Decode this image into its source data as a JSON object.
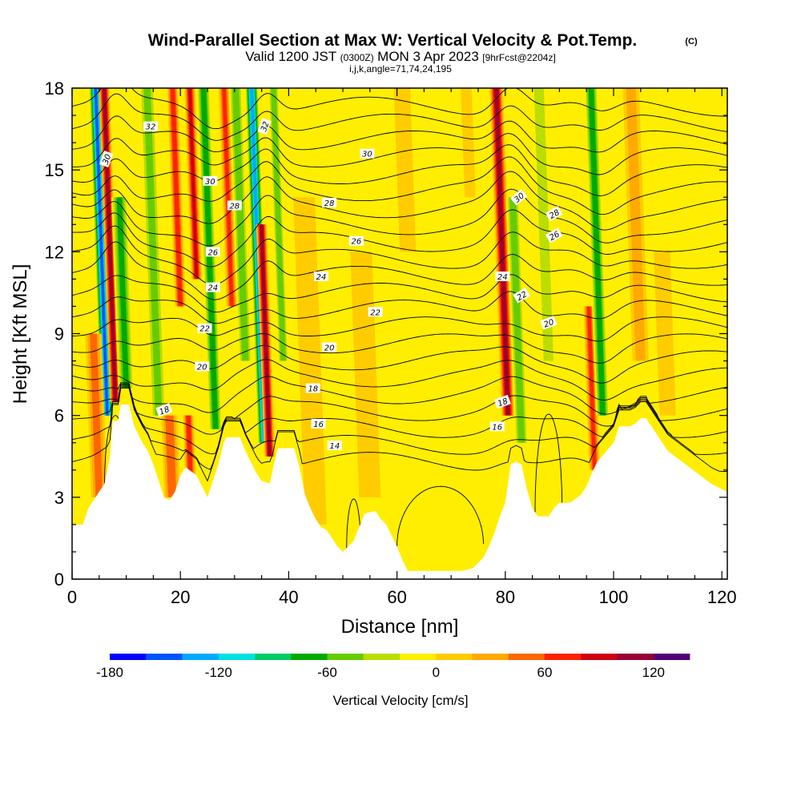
{
  "header": {
    "title": "Wind-Parallel Section at Max W: Vertical Velocity & Pot.Temp.",
    "copyright": "(C)",
    "valid_prefix": "Valid 1200 JST",
    "valid_utc": "(0300Z)",
    "valid_date": "MON 3 Apr 2023",
    "forecast": "[9hrFcst@2204z]",
    "params": "i,j,k,angle=71,74,24,195"
  },
  "chart_data": {
    "type": "heatmap",
    "title": "Wind-Parallel Section at Max W: Vertical Velocity & Pot.Temp.",
    "xlabel": "Distance [nm]",
    "ylabel": "Height [Kft MSL]",
    "xlim": [
      0,
      121
    ],
    "ylim": [
      0,
      18
    ],
    "x_ticks": [
      0,
      20,
      40,
      60,
      80,
      100,
      120
    ],
    "y_ticks": [
      0,
      3,
      6,
      9,
      12,
      15,
      18
    ],
    "colorbar": {
      "label": "Vertical Velocity [cm/s]",
      "range": [
        -180,
        140
      ],
      "step": 20,
      "tick_values": [
        -180,
        -120,
        -60,
        0,
        60,
        120
      ],
      "tick_labels": [
        "-180",
        "-120",
        "-60",
        "0",
        "60",
        "120"
      ],
      "colors": [
        "#0000ff",
        "#0055ff",
        "#00aaff",
        "#00e0e0",
        "#00cc66",
        "#00aa00",
        "#66cc00",
        "#bbdd00",
        "#ffee00",
        "#ffcc00",
        "#ffaa00",
        "#ff6600",
        "#ff2200",
        "#cc0011",
        "#990033",
        "#550077"
      ]
    },
    "terrain_kft": [
      [
        0,
        2.0
      ],
      [
        2,
        2.0
      ],
      [
        3,
        2.6
      ],
      [
        4,
        2.9
      ],
      [
        6,
        3.5
      ],
      [
        7,
        4.5
      ],
      [
        7.5,
        5.8
      ],
      [
        8.5,
        5.8
      ],
      [
        9,
        6.4
      ],
      [
        10.5,
        6.4
      ],
      [
        11.5,
        5.6
      ],
      [
        13,
        5.0
      ],
      [
        14,
        4.7
      ],
      [
        15,
        4.2
      ],
      [
        16,
        3.6
      ],
      [
        17,
        3.0
      ],
      [
        18,
        2.9
      ],
      [
        19,
        3.2
      ],
      [
        20,
        3.8
      ],
      [
        21,
        4.1
      ],
      [
        23,
        3.8
      ],
      [
        24,
        3.4
      ],
      [
        25,
        3.0
      ],
      [
        26,
        3.6
      ],
      [
        27,
        4.2
      ],
      [
        28,
        5.0
      ],
      [
        28.5,
        5.2
      ],
      [
        31,
        5.2
      ],
      [
        32,
        4.7
      ],
      [
        33,
        4.3
      ],
      [
        34,
        3.9
      ],
      [
        35,
        3.6
      ],
      [
        36.5,
        3.5
      ],
      [
        37.5,
        4.4
      ],
      [
        38,
        4.8
      ],
      [
        41,
        4.8
      ],
      [
        42,
        4.1
      ],
      [
        43,
        3.1
      ],
      [
        44,
        2.6
      ],
      [
        45,
        2.2
      ],
      [
        46,
        1.9
      ],
      [
        47,
        1.8
      ],
      [
        48,
        1.5
      ],
      [
        49,
        1.2
      ],
      [
        50,
        1.0
      ],
      [
        51,
        1.2
      ],
      [
        52,
        1.4
      ],
      [
        53,
        1.9
      ],
      [
        54,
        2.4
      ],
      [
        56,
        2.5
      ],
      [
        57,
        2.2
      ],
      [
        58,
        2.0
      ],
      [
        60,
        1.2
      ],
      [
        61,
        0.7
      ],
      [
        62,
        0.3
      ],
      [
        64,
        0.3
      ],
      [
        66,
        0.3
      ],
      [
        68,
        0.3
      ],
      [
        70,
        0.3
      ],
      [
        72,
        0.3
      ],
      [
        74,
        0.4
      ],
      [
        76,
        0.8
      ],
      [
        77,
        1.2
      ],
      [
        78,
        1.7
      ],
      [
        79,
        2.3
      ],
      [
        80,
        2.8
      ],
      [
        81,
        4.2
      ],
      [
        82,
        4.3
      ],
      [
        83,
        4.2
      ],
      [
        84,
        3.3
      ],
      [
        85,
        2.6
      ],
      [
        86,
        2.3
      ],
      [
        88,
        2.3
      ],
      [
        89,
        2.6
      ],
      [
        90,
        2.8
      ],
      [
        92,
        2.8
      ],
      [
        94,
        3.1
      ],
      [
        95,
        3.4
      ],
      [
        96,
        3.9
      ],
      [
        97,
        4.3
      ],
      [
        100,
        5.0
      ],
      [
        101,
        5.6
      ],
      [
        103,
        5.6
      ],
      [
        104,
        5.7
      ],
      [
        105,
        5.9
      ],
      [
        106,
        5.9
      ],
      [
        107,
        5.6
      ],
      [
        108,
        5.3
      ],
      [
        109,
        5.0
      ],
      [
        110,
        4.7
      ],
      [
        112,
        4.4
      ],
      [
        114,
        4.1
      ],
      [
        116,
        3.8
      ],
      [
        118,
        3.5
      ],
      [
        119,
        3.4
      ],
      [
        120,
        3.3
      ],
      [
        121,
        3.2
      ]
    ],
    "vertical_velocity_bands": [
      {
        "x": 6.5,
        "w": 2.5,
        "v": -160,
        "zmin": 6.0,
        "zmax": 18
      },
      {
        "x": 8.0,
        "w": 2.0,
        "v": 120,
        "zmin": 6.5,
        "zmax": 18
      },
      {
        "x": 5.0,
        "w": 3.0,
        "v": 60,
        "zmin": 3.0,
        "zmax": 9
      },
      {
        "x": 10.0,
        "w": 3.0,
        "v": -80,
        "zmin": 7.0,
        "zmax": 14
      },
      {
        "x": 16.0,
        "w": 3.0,
        "v": -60,
        "zmin": 6.0,
        "zmax": 18
      },
      {
        "x": 18.5,
        "w": 3.0,
        "v": 70,
        "zmin": 3.0,
        "zmax": 6
      },
      {
        "x": 20.0,
        "w": 2.0,
        "v": 90,
        "zmin": 10.0,
        "zmax": 18
      },
      {
        "x": 22.0,
        "w": 2.0,
        "v": 90,
        "zmin": 3.0,
        "zmax": 6
      },
      {
        "x": 23.0,
        "w": 2.0,
        "v": 100,
        "zmin": 11.0,
        "zmax": 18
      },
      {
        "x": 26.5,
        "w": 2.5,
        "v": -90,
        "zmin": 5.5,
        "zmax": 18
      },
      {
        "x": 29.5,
        "w": 2.0,
        "v": 80,
        "zmin": 10.0,
        "zmax": 18
      },
      {
        "x": 32.0,
        "w": 2.5,
        "v": -70,
        "zmin": 8.0,
        "zmax": 18
      },
      {
        "x": 35.5,
        "w": 2.5,
        "v": -150,
        "zmin": 5.0,
        "zmax": 18
      },
      {
        "x": 36.5,
        "w": 2.0,
        "v": 120,
        "zmin": 4.5,
        "zmax": 13
      },
      {
        "x": 39.0,
        "w": 2.0,
        "v": -70,
        "zmin": 8.0,
        "zmax": 18
      },
      {
        "x": 45.0,
        "w": 4.0,
        "v": 25,
        "zmin": 2.0,
        "zmax": 14
      },
      {
        "x": 55.0,
        "w": 4.0,
        "v": 20,
        "zmin": 3.0,
        "zmax": 12
      },
      {
        "x": 62.0,
        "w": 3.0,
        "v": 35,
        "zmin": 12.0,
        "zmax": 18
      },
      {
        "x": 70.0,
        "w": 4.0,
        "v": -30,
        "zmin": 8.0,
        "zmax": 16
      },
      {
        "x": 73.5,
        "w": 2.0,
        "v": 35,
        "zmin": 14.0,
        "zmax": 18
      },
      {
        "x": 80.5,
        "w": 2.5,
        "v": 120,
        "zmin": 6.0,
        "zmax": 18
      },
      {
        "x": 83.0,
        "w": 2.5,
        "v": -70,
        "zmin": 5.0,
        "zmax": 14
      },
      {
        "x": 88.0,
        "w": 3.0,
        "v": -40,
        "zmin": 8.0,
        "zmax": 18
      },
      {
        "x": 93.0,
        "w": 3.0,
        "v": -30,
        "zmin": 8.0,
        "zmax": 15
      },
      {
        "x": 96.5,
        "w": 2.0,
        "v": 80,
        "zmin": 4.0,
        "zmax": 10
      },
      {
        "x": 98.0,
        "w": 2.5,
        "v": -90,
        "zmin": 6.0,
        "zmax": 18
      },
      {
        "x": 105.0,
        "w": 3.0,
        "v": 40,
        "zmin": 8.0,
        "zmax": 18
      },
      {
        "x": 110.0,
        "w": 3.0,
        "v": 30,
        "zmin": 6.0,
        "zmax": 12
      },
      {
        "x": 115.0,
        "w": 3.0,
        "v": -30,
        "zmin": 10.0,
        "zmax": 18
      }
    ],
    "contour_label_text": {
      "32": "32",
      "30": "30",
      "28": "28",
      "26": "26",
      "24": "24",
      "22": "22",
      "20": "20",
      "18": "18",
      "16": "16",
      "14": "14"
    },
    "contour_labels": [
      {
        "text": "32",
        "x": 14.5,
        "y": 16.6,
        "rot": 0
      },
      {
        "text": "32",
        "x": 35.5,
        "y": 16.6,
        "rot": -70
      },
      {
        "text": "30",
        "x": 6.3,
        "y": 15.4,
        "rot": -70
      },
      {
        "text": "30",
        "x": 25.5,
        "y": 14.6,
        "rot": 0
      },
      {
        "text": "30",
        "x": 54.5,
        "y": 15.6,
        "rot": 0
      },
      {
        "text": "30",
        "x": 82.5,
        "y": 14.0,
        "rot": -40
      },
      {
        "text": "28",
        "x": 30.0,
        "y": 13.7,
        "rot": 0
      },
      {
        "text": "28",
        "x": 47.5,
        "y": 13.8,
        "rot": 0
      },
      {
        "text": "28",
        "x": 89.0,
        "y": 13.4,
        "rot": -30
      },
      {
        "text": "26",
        "x": 26.0,
        "y": 12.0,
        "rot": 0
      },
      {
        "text": "26",
        "x": 52.5,
        "y": 12.4,
        "rot": 0
      },
      {
        "text": "26",
        "x": 89.0,
        "y": 12.6,
        "rot": -30
      },
      {
        "text": "24",
        "x": 26.0,
        "y": 10.7,
        "rot": 0
      },
      {
        "text": "24",
        "x": 46.0,
        "y": 11.1,
        "rot": 0
      },
      {
        "text": "24",
        "x": 79.5,
        "y": 11.1,
        "rot": 0
      },
      {
        "text": "22",
        "x": 24.5,
        "y": 9.2,
        "rot": 0
      },
      {
        "text": "22",
        "x": 56.0,
        "y": 9.8,
        "rot": 0
      },
      {
        "text": "22",
        "x": 83.0,
        "y": 10.4,
        "rot": -30
      },
      {
        "text": "20",
        "x": 24.0,
        "y": 7.8,
        "rot": 0
      },
      {
        "text": "20",
        "x": 47.5,
        "y": 8.5,
        "rot": 0
      },
      {
        "text": "20",
        "x": 88.0,
        "y": 9.4,
        "rot": -20
      },
      {
        "text": "18",
        "x": 17.0,
        "y": 6.2,
        "rot": -20
      },
      {
        "text": "18",
        "x": 44.5,
        "y": 7.0,
        "rot": 0
      },
      {
        "text": "18",
        "x": 79.5,
        "y": 6.5,
        "rot": -20
      },
      {
        "text": "16",
        "x": 45.5,
        "y": 5.7,
        "rot": 0
      },
      {
        "text": "16",
        "x": 78.5,
        "y": 5.6,
        "rot": 0
      },
      {
        "text": "14",
        "x": 48.5,
        "y": 4.9,
        "rot": 0
      }
    ]
  }
}
